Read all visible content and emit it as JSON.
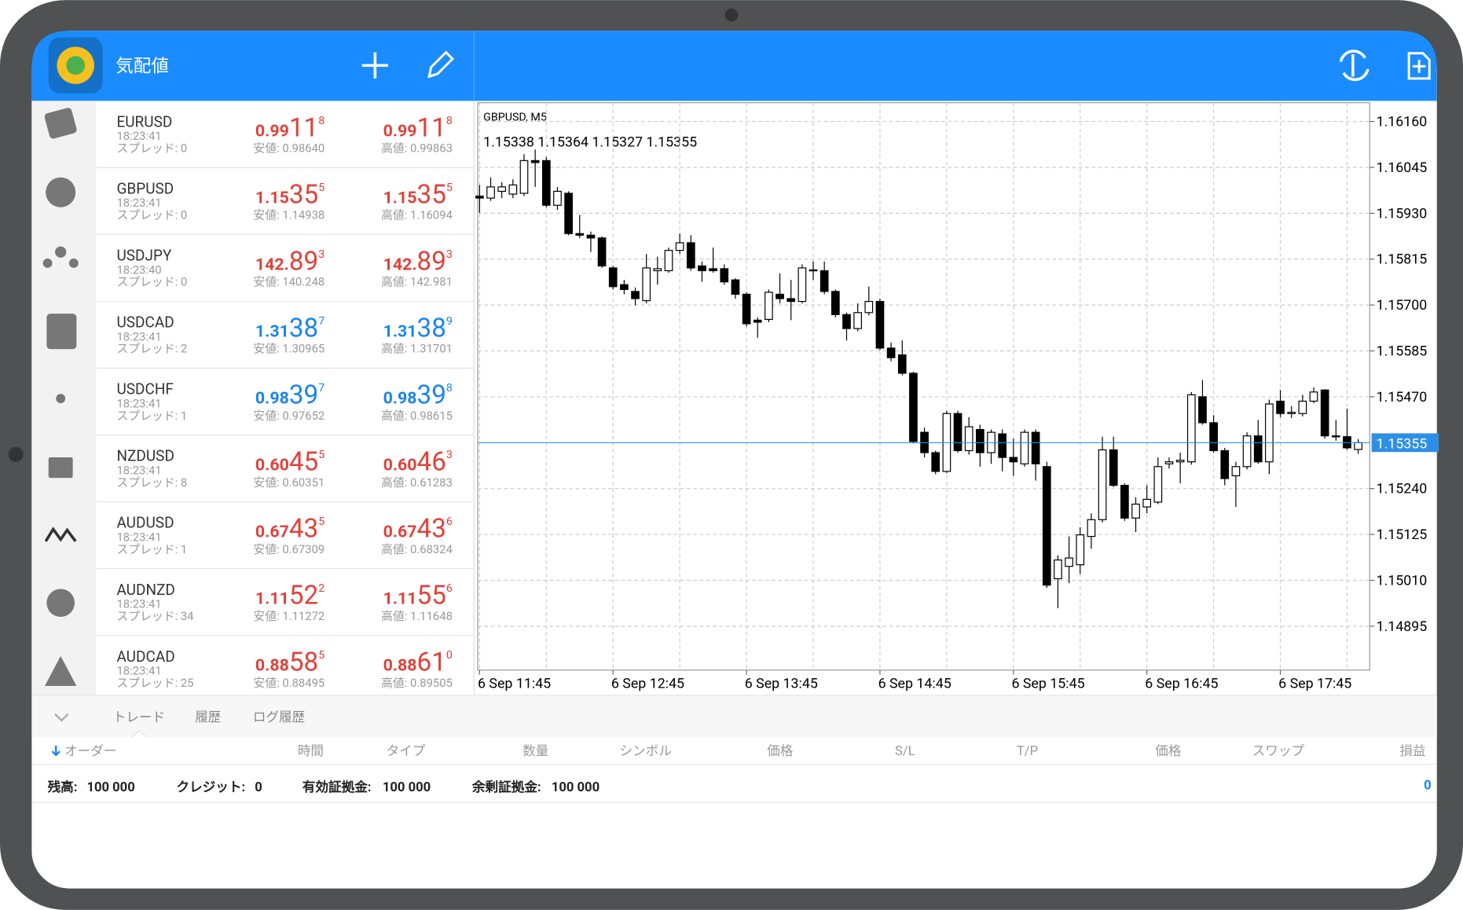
{
  "header": {
    "title": "気配値"
  },
  "quotes": [
    {
      "symbol": "EURUSD",
      "time": "18:23:41",
      "spread": "スプレッド: 0",
      "bid": {
        "prefix": "0.99",
        "big": "11",
        "sup": "8"
      },
      "ask": {
        "prefix": "0.99",
        "big": "11",
        "sup": "8"
      },
      "low": "安値: 0.98640",
      "high": "高値: 0.99863",
      "color": "#e0413b"
    },
    {
      "symbol": "GBPUSD",
      "time": "18:23:41",
      "spread": "スプレッド: 0",
      "bid": {
        "prefix": "1.15",
        "big": "35",
        "sup": "5"
      },
      "ask": {
        "prefix": "1.15",
        "big": "35",
        "sup": "5"
      },
      "low": "安値: 1.14938",
      "high": "高値: 1.16094",
      "color": "#e0413b"
    },
    {
      "symbol": "USDJPY",
      "time": "18:23:40",
      "spread": "スプレッド: 0",
      "bid": {
        "prefix": "142.",
        "big": "89",
        "sup": "3"
      },
      "ask": {
        "prefix": "142.",
        "big": "89",
        "sup": "3"
      },
      "low": "安値: 140.248",
      "high": "高値: 142.981",
      "color": "#e0413b"
    },
    {
      "symbol": "USDCAD",
      "time": "18:23:41",
      "spread": "スプレッド: 2",
      "bid": {
        "prefix": "1.31",
        "big": "38",
        "sup": "7"
      },
      "ask": {
        "prefix": "1.31",
        "big": "38",
        "sup": "9"
      },
      "low": "安値: 1.30965",
      "high": "高値: 1.31701",
      "color": "#1a84f0"
    },
    {
      "symbol": "USDCHF",
      "time": "18:23:41",
      "spread": "スプレッド: 1",
      "bid": {
        "prefix": "0.98",
        "big": "39",
        "sup": "7"
      },
      "ask": {
        "prefix": "0.98",
        "big": "39",
        "sup": "8"
      },
      "low": "安値: 0.97652",
      "high": "高値: 0.98615",
      "color": "#1a84f0"
    },
    {
      "symbol": "NZDUSD",
      "time": "18:23:41",
      "spread": "スプレッド: 8",
      "bid": {
        "prefix": "0.60",
        "big": "45",
        "sup": "5"
      },
      "ask": {
        "prefix": "0.60",
        "big": "46",
        "sup": "3"
      },
      "low": "安値: 0.60351",
      "high": "高値: 0.61283",
      "color": "#e0413b"
    },
    {
      "symbol": "AUDUSD",
      "time": "18:23:41",
      "spread": "スプレッド: 1",
      "bid": {
        "prefix": "0.67",
        "big": "43",
        "sup": "5"
      },
      "ask": {
        "prefix": "0.67",
        "big": "43",
        "sup": "6"
      },
      "low": "安値: 0.67309",
      "high": "高値: 0.68324",
      "color": "#e0413b"
    },
    {
      "symbol": "AUDNZD",
      "time": "18:23:41",
      "spread": "スプレッド: 34",
      "bid": {
        "prefix": "1.11",
        "big": "52",
        "sup": "2"
      },
      "ask": {
        "prefix": "1.11",
        "big": "55",
        "sup": "6"
      },
      "low": "安値: 1.11272",
      "high": "高値: 1.11648",
      "color": "#e0413b"
    },
    {
      "symbol": "AUDCAD",
      "time": "18:23:41",
      "spread": "スプレッド: 25",
      "bid": {
        "prefix": "0.88",
        "big": "58",
        "sup": "5"
      },
      "ask": {
        "prefix": "0.88",
        "big": "61",
        "sup": "0"
      },
      "low": "安値: 0.88495",
      "high": "高値: 0.89505",
      "color": "#e0413b"
    }
  ],
  "chart_data": {
    "type": "candlestick",
    "title": "GBPUSD, M5",
    "ohlc_label": "1.15338 1.15364 1.15327 1.15355",
    "categories": [
      "6 Sep 11:45",
      null,
      null,
      null,
      null,
      null,
      null,
      null,
      null,
      null,
      null,
      null,
      "6 Sep 12:45",
      null,
      null,
      null,
      null,
      null,
      null,
      null,
      null,
      null,
      null,
      null,
      "6 Sep 13:45",
      null,
      null,
      null,
      null,
      null,
      null,
      null,
      null,
      null,
      null,
      null,
      "6 Sep 14:45",
      null,
      null,
      null,
      null,
      null,
      null,
      null,
      null,
      null,
      null,
      null,
      "6 Sep 15:45",
      null,
      null,
      null,
      null,
      null,
      null,
      null,
      null,
      null,
      null,
      null,
      "6 Sep 16:45",
      null,
      null,
      null,
      null,
      null,
      null,
      null,
      null,
      null,
      null,
      null,
      "6 Sep 17:45",
      null,
      null,
      null,
      null,
      null,
      null,
      null
    ],
    "open": [
      1.15973,
      1.15968,
      1.15985,
      1.15978,
      1.1598,
      1.16062,
      1.16062,
      1.1595,
      1.1598,
      1.15879,
      1.15875,
      1.15868,
      1.15793,
      1.15751,
      1.15734,
      1.15711,
      1.15786,
      1.15786,
      1.15837,
      1.15856,
      1.15798,
      1.15791,
      1.15791,
      1.15763,
      1.15727,
      1.15662,
      1.15664,
      1.15727,
      1.15716,
      1.15709,
      1.15786,
      1.15786,
      1.15734,
      1.15676,
      1.15641,
      1.15681,
      1.15709,
      1.15592,
      1.15575,
      1.15529,
      1.15381,
      1.1533,
      1.15283,
      1.15428,
      1.15335,
      1.15388,
      1.1533,
      1.15377,
      1.15318,
      1.15302,
      1.15381,
      1.15295,
      1.15014,
      1.15045,
      1.15049,
      1.1512,
      1.15162,
      1.15337,
      1.15248,
      1.15166,
      1.15194,
      1.15206,
      1.15302,
      1.15307,
      1.15307,
      1.1547,
      1.15405,
      1.15335,
      1.15272,
      1.15295,
      1.15372,
      1.15307,
      1.15459,
      1.15428,
      1.15428,
      1.15459,
      1.15487,
      1.15372,
      1.1537,
      1.15338
    ],
    "high": [
      1.16001,
      1.1602,
      1.16008,
      1.16015,
      1.16078,
      1.1609,
      1.16071,
      1.15996,
      1.15985,
      1.15926,
      1.15884,
      1.15872,
      1.15798,
      1.15763,
      1.15744,
      1.15828,
      1.15821,
      1.15844,
      1.15879,
      1.15875,
      1.15809,
      1.15844,
      1.15802,
      1.15767,
      1.15732,
      1.15669,
      1.15739,
      1.15779,
      1.15763,
      1.15802,
      1.15809,
      1.15809,
      1.15739,
      1.15681,
      1.15704,
      1.15746,
      1.15716,
      1.15606,
      1.15611,
      1.15533,
      1.15393,
      1.15335,
      1.15435,
      1.15435,
      1.15419,
      1.154,
      1.15388,
      1.15388,
      1.15365,
      1.15388,
      1.15388,
      1.15307,
      1.15073,
      1.1512,
      1.15143,
      1.15178,
      1.1537,
      1.1537,
      1.15253,
      1.15218,
      1.15248,
      1.15318,
      1.15318,
      1.1533,
      1.15482,
      1.15512,
      1.15424,
      1.15342,
      1.15307,
      1.15381,
      1.15412,
      1.15463,
      1.15487,
      1.15447,
      1.15475,
      1.15494,
      1.15489,
      1.15412,
      1.1544,
      1.15364
    ],
    "low": [
      1.15931,
      1.15961,
      1.15968,
      1.15968,
      1.15973,
      1.15996,
      1.15945,
      1.15938,
      1.15875,
      1.15868,
      1.15833,
      1.15793,
      1.15739,
      1.15727,
      1.15699,
      1.15704,
      1.15751,
      1.15781,
      1.15828,
      1.15786,
      1.15758,
      1.15781,
      1.15751,
      1.15716,
      1.15646,
      1.15618,
      1.15657,
      1.15704,
      1.15662,
      1.15704,
      1.15763,
      1.15727,
      1.15669,
      1.15611,
      1.15634,
      1.15674,
      1.15587,
      1.15559,
      1.15524,
      1.15353,
      1.15318,
      1.15276,
      1.15279,
      1.1533,
      1.15325,
      1.15295,
      1.15302,
      1.15283,
      1.15272,
      1.15295,
      1.1526,
      1.14991,
      1.1494,
      1.15003,
      1.15026,
      1.15089,
      1.15155,
      1.15244,
      1.15159,
      1.15131,
      1.15178,
      1.15201,
      1.1529,
      1.15253,
      1.153,
      1.154,
      1.1533,
      1.15248,
      1.15194,
      1.15288,
      1.15302,
      1.15276,
      1.15419,
      1.15417,
      1.15421,
      1.15454,
      1.15365,
      1.1536,
      1.15337,
      1.15327
    ],
    "close": [
      1.15968,
      1.15996,
      1.15996,
      1.16001,
      1.16062,
      1.16057,
      1.1595,
      1.15985,
      1.15879,
      1.15875,
      1.15868,
      1.15798,
      1.15746,
      1.15739,
      1.15716,
      1.15793,
      1.15791,
      1.15837,
      1.15856,
      1.15793,
      1.15786,
      1.15786,
      1.15758,
      1.15727,
      1.15653,
      1.15657,
      1.15732,
      1.15716,
      1.15709,
      1.15793,
      1.15788,
      1.15734,
      1.15676,
      1.15641,
      1.15681,
      1.15709,
      1.15592,
      1.15568,
      1.15529,
      1.15358,
      1.1533,
      1.15283,
      1.15428,
      1.15335,
      1.15395,
      1.1533,
      1.15381,
      1.15318,
      1.15307,
      1.15381,
      1.15302,
      1.14998,
      1.15061,
      1.15066,
      1.15124,
      1.15162,
      1.15337,
      1.15248,
      1.15166,
      1.15201,
      1.15213,
      1.15295,
      1.15307,
      1.15311,
      1.15475,
      1.15405,
      1.15335,
      1.15265,
      1.15295,
      1.15372,
      1.15307,
      1.15452,
      1.15428,
      1.15431,
      1.15459,
      1.15482,
      1.15372,
      1.1537,
      1.15342,
      1.15355
    ],
    "up_color": "#ffffff",
    "down_color": "#000000",
    "ylim": [
      1.14785,
      1.16207
    ],
    "yticks": [
      {
        "value": 1.1616,
        "label": "1.16160"
      },
      1.16045,
      {
        "value": 1.1593,
        "label": "1.15930"
      },
      1.15815,
      {
        "value": 1.157,
        "label": "1.15700"
      },
      1.15585,
      {
        "value": 1.1547,
        "label": "1.15470"
      },
      {
        "value": 1.1524,
        "label": "1.15240"
      },
      1.15125,
      {
        "value": 1.1501,
        "label": "1.15010"
      },
      1.14895
    ],
    "bid_line": 1.15355,
    "grid": true
  },
  "bottom": {
    "tabs": [
      "トレード",
      "履歴",
      "ログ履歴"
    ],
    "columns": [
      "オーダー",
      "時間",
      "タイプ",
      "数量",
      "シンボル",
      "価格",
      "S/L",
      "T/P",
      "価格",
      "スワップ",
      "損益"
    ],
    "account": [
      {
        "label": "残高:",
        "value": "100 000"
      },
      {
        "label": "クレジット:",
        "value": "0"
      },
      {
        "label": "有効証拠金:",
        "value": "100 000"
      },
      {
        "label": "余剰証拠金:",
        "value": "100 000"
      }
    ],
    "profit_total": "0"
  }
}
